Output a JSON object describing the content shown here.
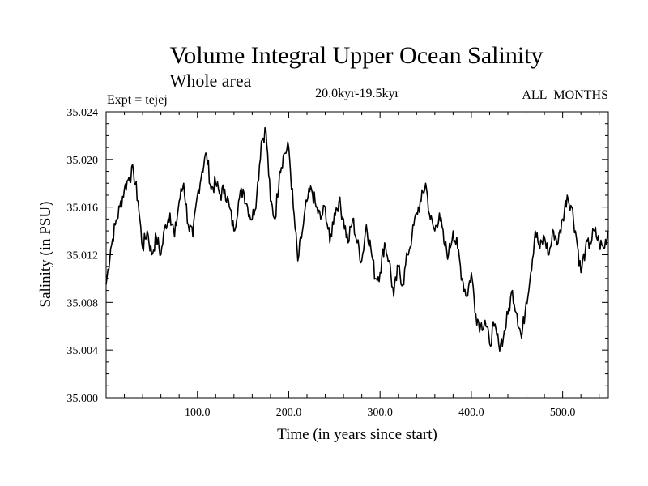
{
  "chart_data": {
    "type": "line",
    "title": "Volume Integral Upper Ocean Salinity",
    "subtitle": "Whole area",
    "experiment_label": "Expt = tejej",
    "period_label": "20.0kyr-19.5kyr",
    "months_label": "ALL_MONTHS",
    "xlabel": "Time (in years since start)",
    "ylabel": "Salinity (in PSU)",
    "xlim": [
      0,
      550
    ],
    "ylim": [
      35.0,
      35.024
    ],
    "x_ticks": [
      100,
      200,
      300,
      400,
      500
    ],
    "x_tick_labels": [
      "100.0",
      "200.0",
      "300.0",
      "400.0",
      "500.0"
    ],
    "y_ticks": [
      35.0,
      35.004,
      35.008,
      35.012,
      35.016,
      35.02,
      35.024
    ],
    "y_tick_labels": [
      "35.000",
      "35.004",
      "35.008",
      "35.012",
      "35.016",
      "35.020",
      "35.024"
    ],
    "series": [
      {
        "name": "salinity",
        "x": [
          0,
          5,
          10,
          15,
          20,
          25,
          30,
          35,
          40,
          45,
          50,
          55,
          60,
          65,
          70,
          75,
          80,
          85,
          90,
          95,
          100,
          105,
          110,
          115,
          120,
          125,
          130,
          135,
          140,
          145,
          150,
          155,
          160,
          165,
          170,
          175,
          180,
          185,
          190,
          195,
          200,
          205,
          210,
          215,
          220,
          225,
          230,
          235,
          240,
          245,
          250,
          255,
          260,
          265,
          270,
          275,
          280,
          285,
          290,
          295,
          300,
          305,
          310,
          315,
          320,
          325,
          330,
          335,
          340,
          345,
          350,
          355,
          360,
          365,
          370,
          375,
          380,
          385,
          390,
          395,
          400,
          405,
          410,
          415,
          420,
          425,
          430,
          435,
          440,
          445,
          450,
          455,
          460,
          465,
          470,
          475,
          480,
          485,
          490,
          495,
          500,
          505,
          510,
          515,
          520,
          525,
          530,
          535,
          540,
          545,
          550
        ],
        "values": [
          35.0095,
          35.0125,
          35.0145,
          35.016,
          35.0175,
          35.0185,
          35.019,
          35.0165,
          35.0125,
          35.014,
          35.012,
          35.0135,
          35.012,
          35.0145,
          35.0155,
          35.0135,
          35.0165,
          35.018,
          35.0145,
          35.0135,
          35.017,
          35.019,
          35.0205,
          35.0175,
          35.018,
          35.017,
          35.0175,
          35.016,
          35.014,
          35.0165,
          35.0175,
          35.016,
          35.015,
          35.017,
          35.0215,
          35.0225,
          35.0165,
          35.015,
          35.019,
          35.0205,
          35.021,
          35.016,
          35.0115,
          35.014,
          35.0165,
          35.0175,
          35.016,
          35.015,
          35.016,
          35.013,
          35.0155,
          35.0165,
          35.015,
          35.013,
          35.015,
          35.013,
          35.0115,
          35.0145,
          35.0125,
          35.01,
          35.0105,
          35.013,
          35.0115,
          35.0085,
          35.011,
          35.0095,
          35.012,
          35.0135,
          35.0155,
          35.0165,
          35.018,
          35.015,
          35.014,
          35.0155,
          35.013,
          35.012,
          35.014,
          35.0125,
          35.01,
          35.0085,
          35.0105,
          35.007,
          35.006,
          35.0065,
          35.0045,
          35.006,
          35.0045,
          35.005,
          35.007,
          35.009,
          35.007,
          35.005,
          35.008,
          35.0105,
          35.014,
          35.0125,
          35.0135,
          35.012,
          35.014,
          35.013,
          35.015,
          35.017,
          35.016,
          35.0135,
          35.0105,
          35.0125,
          35.013,
          35.014,
          35.013,
          35.0125,
          35.014
        ]
      }
    ]
  }
}
